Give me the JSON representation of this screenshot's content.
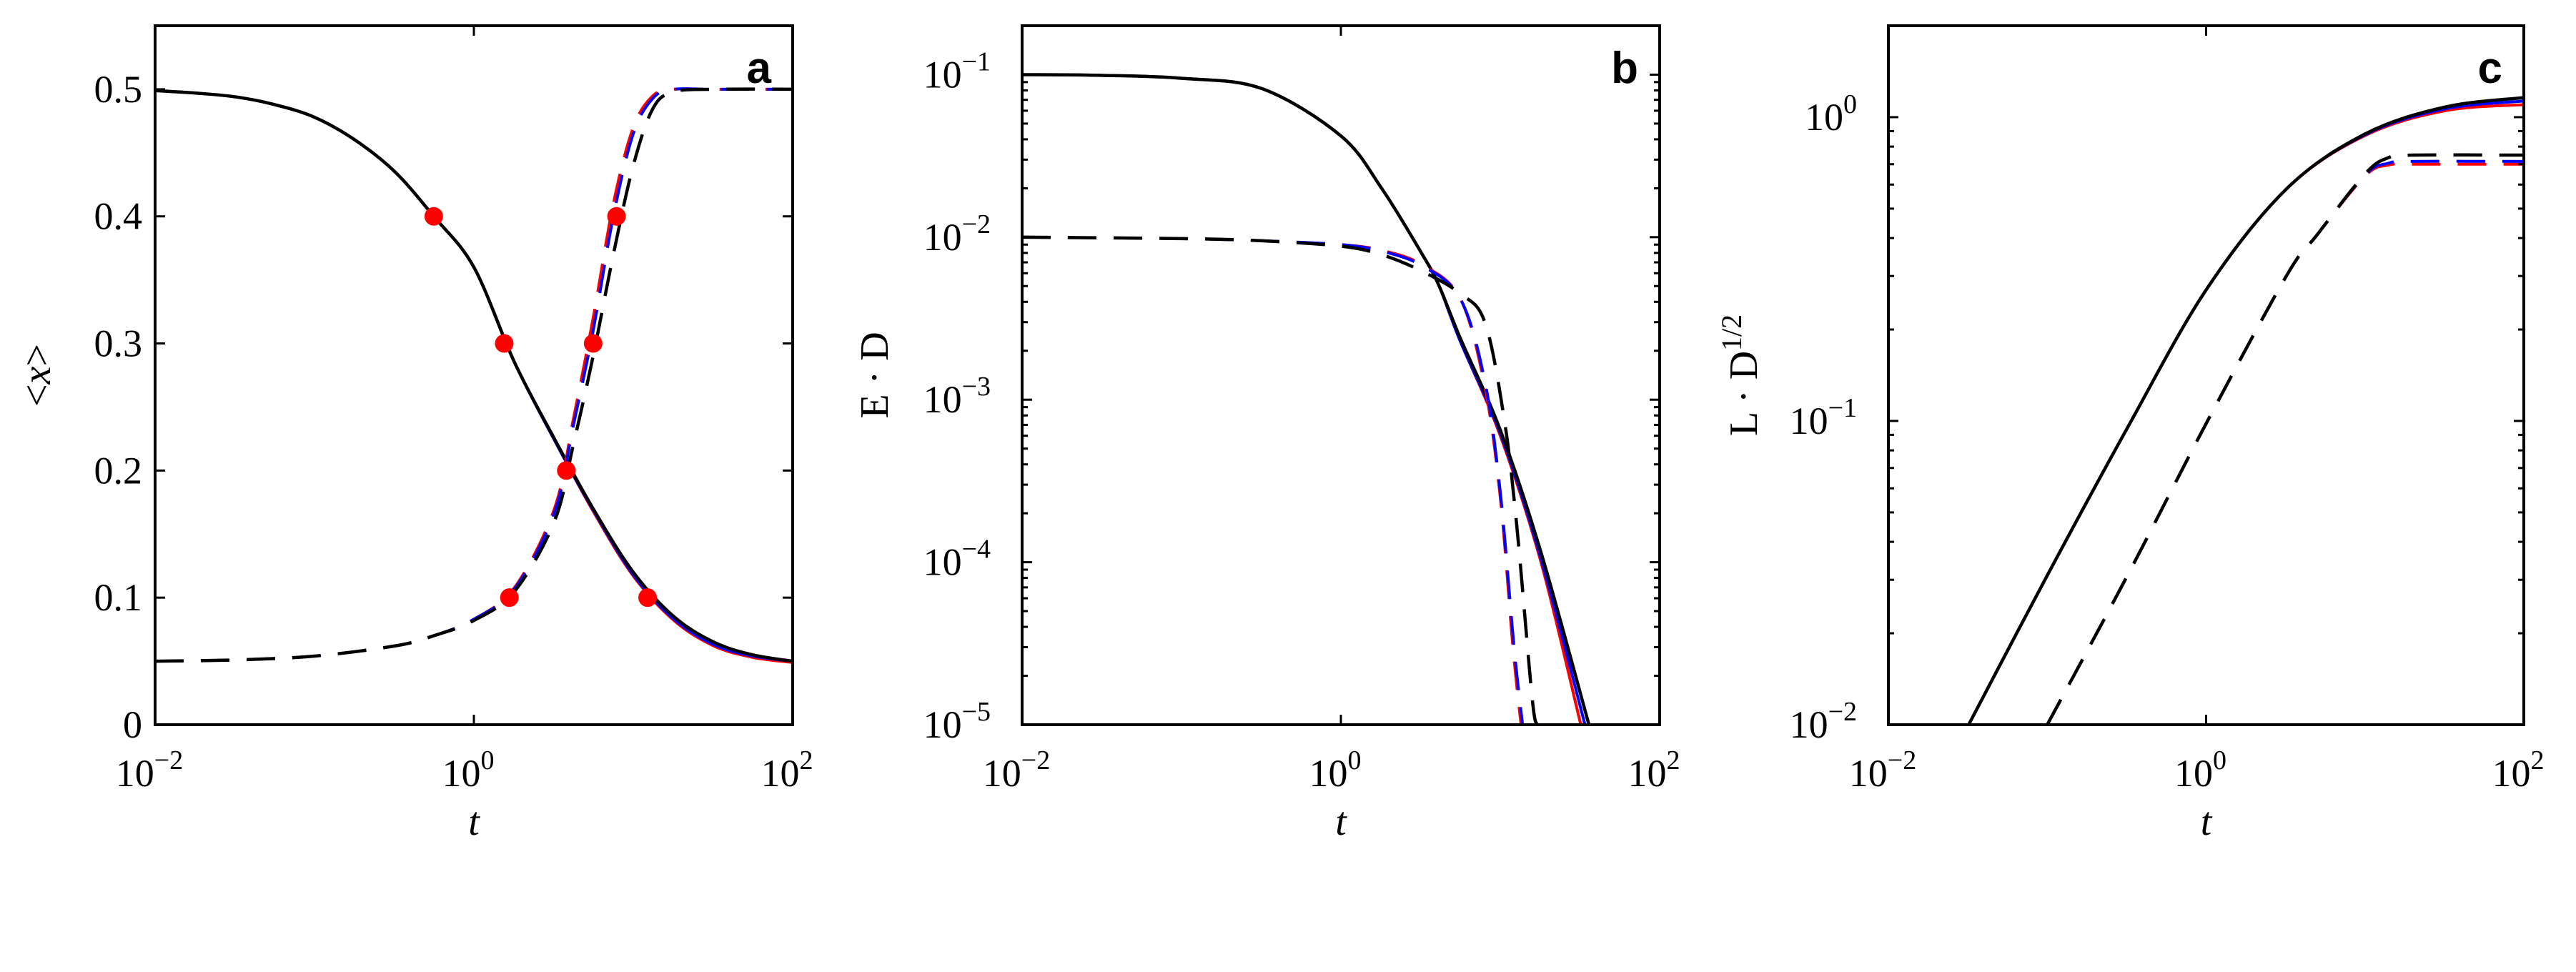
{
  "colors": {
    "black": "#000000",
    "red": "#ff0000",
    "blue": "#0000ff",
    "marker": "#ff0000"
  },
  "chart_data": [
    {
      "type": "line",
      "panel": "a",
      "xlabel": "t",
      "ylabel": [
        {
          "text": "<"
        },
        {
          "text": "x",
          "italic": true
        },
        {
          "text": ">"
        }
      ],
      "xscale": "log",
      "yscale": "linear",
      "xlim": [
        0.01,
        100
      ],
      "ylim": [
        0,
        0.55
      ],
      "xticks": [
        0.01,
        1,
        100
      ],
      "xtick_labels": [
        [
          "10",
          "−2"
        ],
        [
          "10",
          "0"
        ],
        [
          "10",
          "2"
        ]
      ],
      "yticks": [
        0,
        0.1,
        0.2,
        0.3,
        0.4,
        0.5
      ],
      "ytick_labels": [
        [
          "0"
        ],
        [
          "0.1"
        ],
        [
          "0.2"
        ],
        [
          "0.3"
        ],
        [
          "0.4"
        ],
        [
          "0.5"
        ]
      ],
      "grid": false,
      "series": [
        {
          "color": "red",
          "style": "solid",
          "x": [
            0.01,
            0.018,
            0.032,
            0.056,
            0.1,
            0.18,
            0.32,
            0.56,
            1,
            1.8,
            3.2,
            5.6,
            10,
            18,
            32,
            56,
            100
          ],
          "y": [
            0.499,
            0.497,
            0.494,
            0.488,
            0.478,
            0.46,
            0.435,
            0.4,
            0.36,
            0.285,
            0.224,
            0.168,
            0.117,
            0.082,
            0.062,
            0.053,
            0.049
          ]
        },
        {
          "color": "blue",
          "style": "solid",
          "x": [
            0.01,
            0.018,
            0.032,
            0.056,
            0.1,
            0.18,
            0.32,
            0.56,
            1,
            1.8,
            3.2,
            5.6,
            10,
            18,
            32,
            56,
            100
          ],
          "y": [
            0.499,
            0.497,
            0.494,
            0.488,
            0.478,
            0.46,
            0.435,
            0.4,
            0.36,
            0.285,
            0.224,
            0.169,
            0.118,
            0.083,
            0.063,
            0.054,
            0.05
          ]
        },
        {
          "color": "black",
          "style": "solid",
          "x": [
            0.01,
            0.018,
            0.032,
            0.056,
            0.1,
            0.18,
            0.32,
            0.56,
            1,
            1.8,
            3.2,
            5.6,
            10,
            18,
            32,
            56,
            100
          ],
          "y": [
            0.499,
            0.497,
            0.494,
            0.488,
            0.478,
            0.46,
            0.435,
            0.4,
            0.36,
            0.285,
            0.225,
            0.17,
            0.12,
            0.085,
            0.065,
            0.055,
            0.05
          ]
        },
        {
          "color": "red",
          "style": "dashed",
          "x": [
            0.01,
            0.032,
            0.1,
            0.32,
            0.56,
            1,
            1.8,
            3.2,
            4.2,
            5.6,
            7.5,
            10,
            13.3,
            18,
            32,
            100
          ],
          "y": [
            0.05,
            0.051,
            0.054,
            0.062,
            0.07,
            0.083,
            0.108,
            0.17,
            0.24,
            0.32,
            0.41,
            0.47,
            0.495,
            0.5,
            0.5,
            0.5
          ]
        },
        {
          "color": "blue",
          "style": "dashed",
          "x": [
            0.01,
            0.032,
            0.1,
            0.32,
            0.56,
            1,
            1.8,
            3.2,
            4.2,
            5.6,
            7.5,
            10,
            13.3,
            18,
            32,
            100
          ],
          "y": [
            0.05,
            0.051,
            0.054,
            0.062,
            0.07,
            0.083,
            0.107,
            0.167,
            0.235,
            0.31,
            0.4,
            0.465,
            0.493,
            0.5,
            0.5,
            0.5
          ]
        },
        {
          "color": "black",
          "style": "dashed",
          "x": [
            0.01,
            0.032,
            0.1,
            0.32,
            0.56,
            1,
            1.8,
            3.2,
            4.2,
            5.6,
            7.5,
            10,
            13.3,
            18,
            32,
            100
          ],
          "y": [
            0.05,
            0.051,
            0.054,
            0.062,
            0.07,
            0.082,
            0.105,
            0.16,
            0.22,
            0.29,
            0.37,
            0.44,
            0.485,
            0.498,
            0.5,
            0.5
          ]
        }
      ],
      "markers": {
        "color": "marker",
        "x": [
          0.56,
          1.55,
          3.8,
          12.3,
          1.67,
          5.6,
          7.85
        ],
        "y": [
          0.4,
          0.3,
          0.2,
          0.1,
          0.1,
          0.3,
          0.4
        ]
      }
    },
    {
      "type": "line",
      "panel": "b",
      "xlabel": "t",
      "ylabel": [
        {
          "text": "E · D"
        }
      ],
      "xscale": "log",
      "yscale": "log",
      "xlim": [
        0.01,
        100
      ],
      "ylim": [
        1e-05,
        0.2
      ],
      "xticks": [
        0.01,
        1,
        100
      ],
      "xtick_labels": [
        [
          "10",
          "−2"
        ],
        [
          "10",
          "0"
        ],
        [
          "10",
          "2"
        ]
      ],
      "yticks": [
        1e-05,
        0.0001,
        0.001,
        0.01,
        0.1
      ],
      "ytick_labels": [
        [
          "10",
          "−5"
        ],
        [
          "10",
          "−4"
        ],
        [
          "10",
          "−3"
        ],
        [
          "10",
          "−2"
        ],
        [
          "10",
          "−1"
        ]
      ],
      "grid": false,
      "series": [
        {
          "color": "red",
          "style": "solid",
          "x": [
            0.01,
            0.032,
            0.1,
            0.32,
            1,
            1.8,
            3.2,
            4.1,
            5.6,
            10,
            18,
            32
          ],
          "y": [
            0.1,
            0.099,
            0.095,
            0.082,
            0.042,
            0.02,
            0.008,
            0.0051,
            0.0023,
            0.0006,
            0.0001,
            1e-05
          ]
        },
        {
          "color": "blue",
          "style": "solid",
          "x": [
            0.01,
            0.032,
            0.1,
            0.32,
            1,
            1.8,
            3.2,
            4.1,
            5.6,
            10,
            18,
            34
          ],
          "y": [
            0.1,
            0.099,
            0.095,
            0.082,
            0.042,
            0.02,
            0.008,
            0.0051,
            0.0023,
            0.00062,
            0.000105,
            1e-05
          ]
        },
        {
          "color": "black",
          "style": "solid",
          "x": [
            0.01,
            0.032,
            0.1,
            0.32,
            1,
            1.8,
            3.2,
            4.1,
            5.6,
            10,
            18,
            36
          ],
          "y": [
            0.1,
            0.099,
            0.095,
            0.082,
            0.042,
            0.02,
            0.008,
            0.0051,
            0.0024,
            0.00065,
            0.000115,
            1e-05
          ]
        },
        {
          "color": "red",
          "style": "dashed",
          "x": [
            0.01,
            0.1,
            0.32,
            1,
            1.8,
            3.2,
            5.6,
            8,
            10,
            12,
            13.5
          ],
          "y": [
            0.01,
            0.0098,
            0.0095,
            0.009,
            0.0083,
            0.0068,
            0.0042,
            0.0012,
            0.00025,
            3e-05,
            1e-05
          ]
        },
        {
          "color": "blue",
          "style": "dashed",
          "x": [
            0.01,
            0.1,
            0.32,
            1,
            1.8,
            3.2,
            5.6,
            8,
            10,
            12.2,
            13.8
          ],
          "y": [
            0.01,
            0.0098,
            0.0095,
            0.009,
            0.0082,
            0.0067,
            0.0042,
            0.0013,
            0.00027,
            3e-05,
            1e-05
          ]
        },
        {
          "color": "black",
          "style": "dashed",
          "x": [
            0.01,
            0.1,
            0.32,
            1,
            1.8,
            3.2,
            5.6,
            8,
            10.5,
            12.6,
            15.8,
            17
          ],
          "y": [
            0.01,
            0.0098,
            0.0095,
            0.0088,
            0.0078,
            0.0062,
            0.0045,
            0.003,
            0.0008,
            0.00018,
            1.5e-05,
            1e-05
          ]
        }
      ]
    },
    {
      "type": "line",
      "panel": "c",
      "xlabel": "t",
      "ylabel": [
        {
          "text": "L · D"
        },
        {
          "text": "1/2",
          "sup": true
        }
      ],
      "xscale": "log",
      "yscale": "log",
      "xlim": [
        0.01,
        100
      ],
      "ylim": [
        0.01,
        2
      ],
      "xticks": [
        0.01,
        1,
        100
      ],
      "xtick_labels": [
        [
          "10",
          "−2"
        ],
        [
          "10",
          "0"
        ],
        [
          "10",
          "2"
        ]
      ],
      "yticks": [
        0.01,
        0.1,
        1
      ],
      "ytick_labels": [
        [
          "10",
          "−2"
        ],
        [
          "10",
          "−1"
        ],
        [
          "10",
          "0"
        ]
      ],
      "grid": false,
      "series": [
        {
          "color": "red",
          "style": "solid",
          "x": [
            0.032,
            0.1,
            0.32,
            1,
            3.2,
            10,
            32,
            100
          ],
          "y": [
            0.01,
            0.031,
            0.095,
            0.27,
            0.58,
            0.87,
            1.05,
            1.1
          ]
        },
        {
          "color": "blue",
          "style": "solid",
          "x": [
            0.032,
            0.1,
            0.32,
            1,
            3.2,
            10,
            32,
            100
          ],
          "y": [
            0.01,
            0.031,
            0.095,
            0.27,
            0.58,
            0.875,
            1.065,
            1.13
          ]
        },
        {
          "color": "black",
          "style": "solid",
          "x": [
            0.032,
            0.1,
            0.32,
            1,
            3.2,
            10,
            32,
            100
          ],
          "y": [
            0.01,
            0.031,
            0.095,
            0.27,
            0.58,
            0.88,
            1.08,
            1.16
          ]
        },
        {
          "color": "red",
          "style": "dashed",
          "x": [
            0.1,
            0.32,
            1,
            3.2,
            5,
            10,
            14,
            20,
            100
          ],
          "y": [
            0.01,
            0.031,
            0.098,
            0.3,
            0.41,
            0.64,
            0.695,
            0.7,
            0.7
          ]
        },
        {
          "color": "blue",
          "style": "dashed",
          "x": [
            0.1,
            0.32,
            1,
            3.2,
            5,
            10,
            14,
            20,
            100
          ],
          "y": [
            0.01,
            0.031,
            0.098,
            0.3,
            0.41,
            0.645,
            0.705,
            0.715,
            0.715
          ]
        },
        {
          "color": "black",
          "style": "dashed",
          "x": [
            0.1,
            0.32,
            1,
            3.2,
            5,
            10,
            14,
            20,
            100
          ],
          "y": [
            0.01,
            0.031,
            0.098,
            0.3,
            0.41,
            0.65,
            0.735,
            0.75,
            0.75
          ]
        }
      ]
    }
  ]
}
